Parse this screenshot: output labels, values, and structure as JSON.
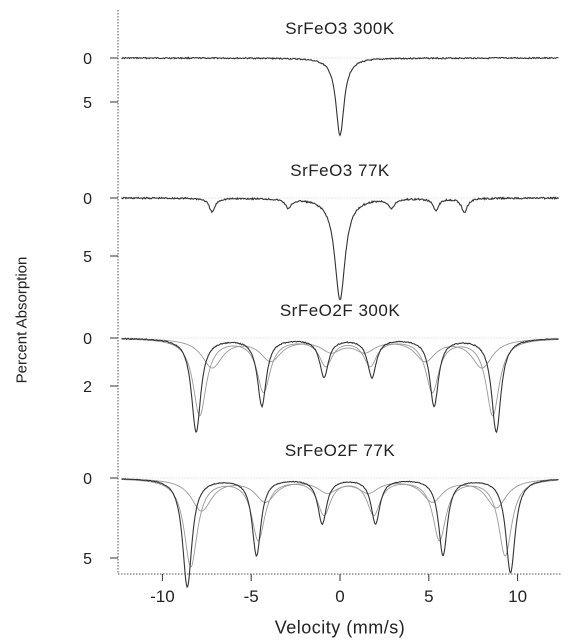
{
  "chart_data": {
    "type": "line",
    "xlabel": "Velocity (mm/s)",
    "ylabel": "Percent Absorption",
    "xlim": [
      -12.5,
      12.5
    ],
    "x_ticks": [
      "-10",
      "-5",
      "0",
      "5",
      "10"
    ],
    "x_tick_values": [
      -10,
      -5,
      0,
      5,
      10
    ],
    "panels": [
      {
        "title": "SrFeO3 300K",
        "y_ticks": [
          {
            "value": 0,
            "label": "0"
          },
          {
            "value": 5,
            "label": "5"
          }
        ],
        "ylim": [
          0,
          9.2
        ],
        "lines": [
          {
            "name": "",
            "center": 0.0,
            "depth": 8.8,
            "width": 0.28
          }
        ],
        "sextets": []
      },
      {
        "title": "SrFeO3 77K",
        "y_ticks": [
          {
            "value": 0,
            "label": "0"
          },
          {
            "value": 5,
            "label": "5"
          }
        ],
        "ylim": [
          0,
          9.2
        ],
        "lines": [
          {
            "name": "",
            "center": 0.0,
            "depth": 8.8,
            "width": 0.35
          },
          {
            "name": "",
            "center": -7.2,
            "depth": 1.2,
            "width": 0.2
          },
          {
            "name": "",
            "center": -2.9,
            "depth": 0.8,
            "width": 0.2
          },
          {
            "name": "",
            "center": 2.9,
            "depth": 0.8,
            "width": 0.2
          },
          {
            "name": "",
            "center": 5.4,
            "depth": 1.0,
            "width": 0.2
          },
          {
            "name": "",
            "center": 7.0,
            "depth": 1.2,
            "width": 0.2
          }
        ],
        "sextets": []
      },
      {
        "title": "SrFeO2F 300K",
        "y_ticks": [
          {
            "value": 0,
            "label": "0"
          },
          {
            "value": 2,
            "label": "2"
          }
        ],
        "ylim": [
          0,
          4.0
        ],
        "lines": [
          {
            "name": "",
            "center": -8.1,
            "depth": 3.9,
            "width": 0.32
          },
          {
            "name": "",
            "center": -4.4,
            "depth": 2.8,
            "width": 0.3
          },
          {
            "name": "",
            "center": -0.9,
            "depth": 1.6,
            "width": 0.3
          },
          {
            "name": "",
            "center": 1.8,
            "depth": 1.6,
            "width": 0.3
          },
          {
            "name": "",
            "center": 5.3,
            "depth": 2.8,
            "width": 0.3
          },
          {
            "name": "",
            "center": 8.8,
            "depth": 3.9,
            "width": 0.32
          }
        ],
        "sextets": [
          {
            "name": "",
            "centers": [
              -7.9,
              -4.3,
              -0.8,
              1.7,
              5.2,
              8.6
            ],
            "depths": [
              3.2,
              2.2,
              1.1,
              1.1,
              2.2,
              3.2
            ],
            "width": 0.45
          },
          {
            "name": "",
            "centers": [
              -7.2,
              -3.9,
              -0.5,
              1.4,
              4.8,
              8.0
            ],
            "depths": [
              1.2,
              0.9,
              0.5,
              0.5,
              0.9,
              1.2
            ],
            "width": 0.7
          }
        ]
      },
      {
        "title": "SrFeO2F 77K",
        "y_ticks": [
          {
            "value": 0,
            "label": "0"
          },
          {
            "value": 5,
            "label": "5"
          }
        ],
        "ylim": [
          0,
          7.0
        ],
        "lines": [
          {
            "name": "",
            "center": -8.6,
            "depth": 6.8,
            "width": 0.32
          },
          {
            "name": "",
            "center": -4.7,
            "depth": 4.8,
            "width": 0.3
          },
          {
            "name": "",
            "center": -1.0,
            "depth": 2.8,
            "width": 0.3
          },
          {
            "name": "",
            "center": 2.0,
            "depth": 2.8,
            "width": 0.3
          },
          {
            "name": "",
            "center": 5.8,
            "depth": 4.8,
            "width": 0.3
          },
          {
            "name": "",
            "center": 9.6,
            "depth": 5.9,
            "width": 0.32
          }
        ],
        "sextets": [
          {
            "name": "",
            "centers": [
              -8.4,
              -4.6,
              -0.9,
              1.9,
              5.6,
              9.3
            ],
            "depths": [
              5.5,
              3.8,
              2.2,
              2.2,
              3.8,
              4.8
            ],
            "width": 0.45
          },
          {
            "name": "",
            "centers": [
              -7.8,
              -4.2,
              -0.7,
              1.6,
              5.2,
              8.8
            ],
            "depths": [
              2.0,
              1.4,
              0.8,
              0.8,
              1.4,
              1.8
            ],
            "width": 0.7
          }
        ]
      }
    ],
    "grid": false,
    "legend": "none"
  }
}
